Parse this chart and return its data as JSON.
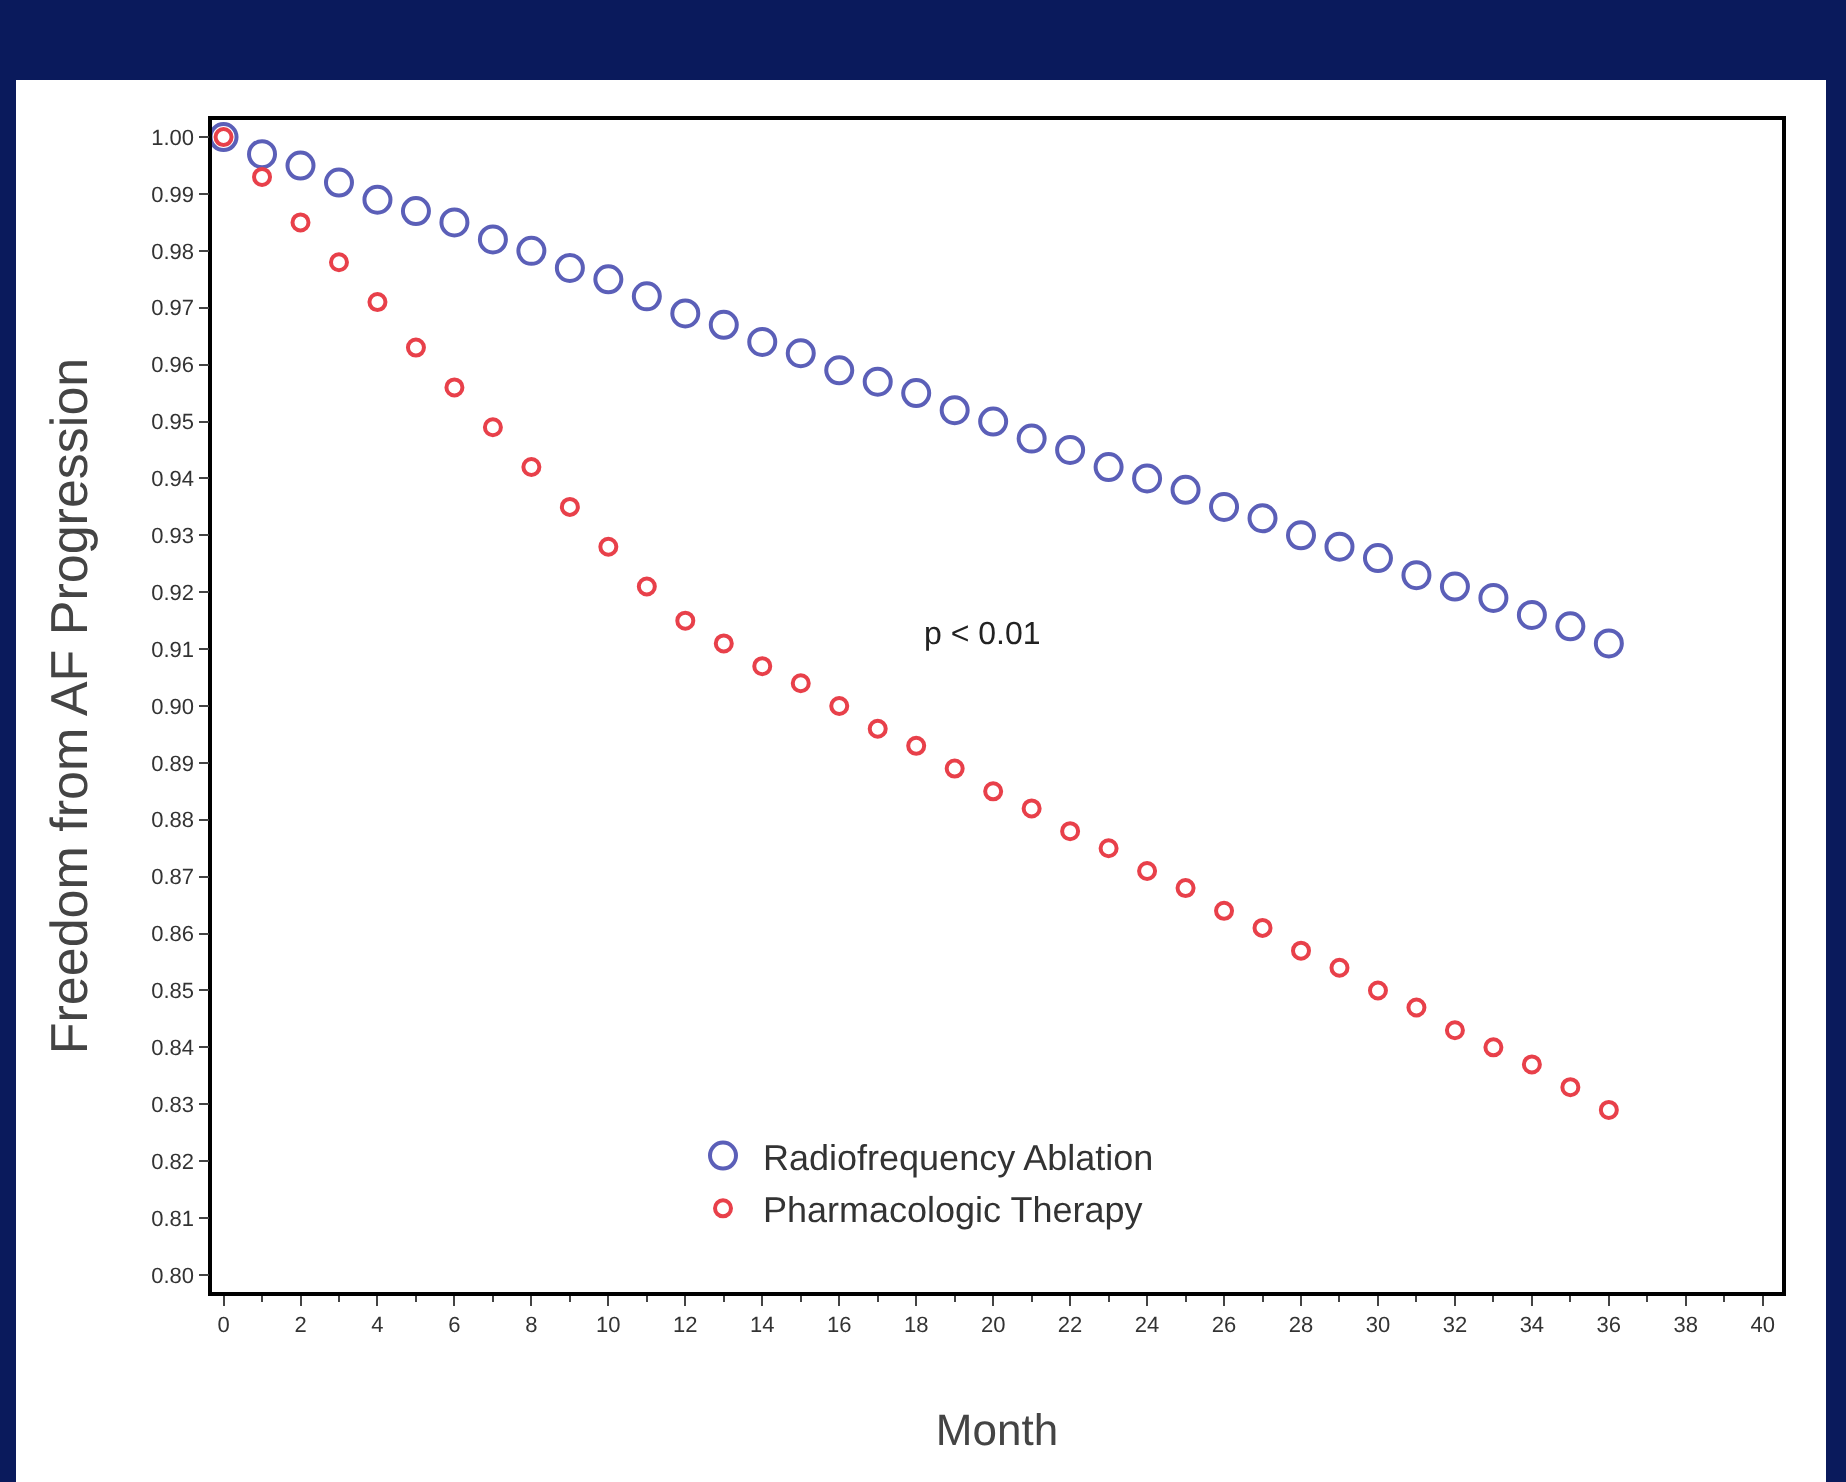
{
  "chart_data": {
    "type": "scatter",
    "xlabel": "Month",
    "ylabel": "Freedom from AF Progression",
    "annotations": [
      "p < 0.01"
    ],
    "x": [
      0,
      1,
      2,
      3,
      4,
      5,
      6,
      7,
      8,
      9,
      10,
      11,
      12,
      13,
      14,
      15,
      16,
      17,
      18,
      19,
      20,
      21,
      22,
      23,
      24,
      25,
      26,
      27,
      28,
      29,
      30,
      31,
      32,
      33,
      34,
      35,
      36
    ],
    "series": [
      {
        "name": "Radiofrequency Ablation",
        "color": "#5b5fb8",
        "values": [
          1.0,
          0.997,
          0.995,
          0.992,
          0.989,
          0.987,
          0.985,
          0.982,
          0.98,
          0.977,
          0.975,
          0.972,
          0.969,
          0.967,
          0.964,
          0.962,
          0.959,
          0.957,
          0.955,
          0.952,
          0.95,
          0.947,
          0.945,
          0.942,
          0.94,
          0.938,
          0.935,
          0.933,
          0.93,
          0.928,
          0.926,
          0.923,
          0.921,
          0.919,
          0.916,
          0.914,
          0.911
        ]
      },
      {
        "name": "Pharmacologic Therapy",
        "color": "#e8404a",
        "values": [
          1.0,
          0.993,
          0.985,
          0.978,
          0.971,
          0.963,
          0.956,
          0.949,
          0.942,
          0.935,
          0.928,
          0.921,
          0.915,
          0.911,
          0.907,
          0.904,
          0.9,
          0.896,
          0.893,
          0.889,
          0.885,
          0.882,
          0.878,
          0.875,
          0.871,
          0.868,
          0.864,
          0.861,
          0.857,
          0.854,
          0.85,
          0.847,
          0.843,
          0.84,
          0.837,
          0.833,
          0.829
        ]
      }
    ],
    "xlim": [
      -0.3,
      40.5
    ],
    "xticks": [
      0,
      2,
      4,
      6,
      8,
      10,
      12,
      14,
      16,
      18,
      20,
      22,
      24,
      26,
      28,
      30,
      32,
      34,
      36,
      38,
      40
    ],
    "ylim": [
      0.797,
      1.003
    ],
    "yticks": [
      {
        "value": 0.8,
        "label": "0.80"
      },
      0.81,
      0.82,
      0.83,
      0.84,
      0.85,
      0.86,
      0.87,
      0.88,
      0.89,
      {
        "value": 0.9,
        "label": "0.90"
      },
      0.91,
      0.92,
      0.93,
      0.94,
      0.95,
      0.96,
      0.97,
      0.98,
      0.99,
      {
        "value": 1,
        "label": "1.00"
      }
    ],
    "grid": false,
    "legend": "bottom",
    "marker": "circle"
  }
}
